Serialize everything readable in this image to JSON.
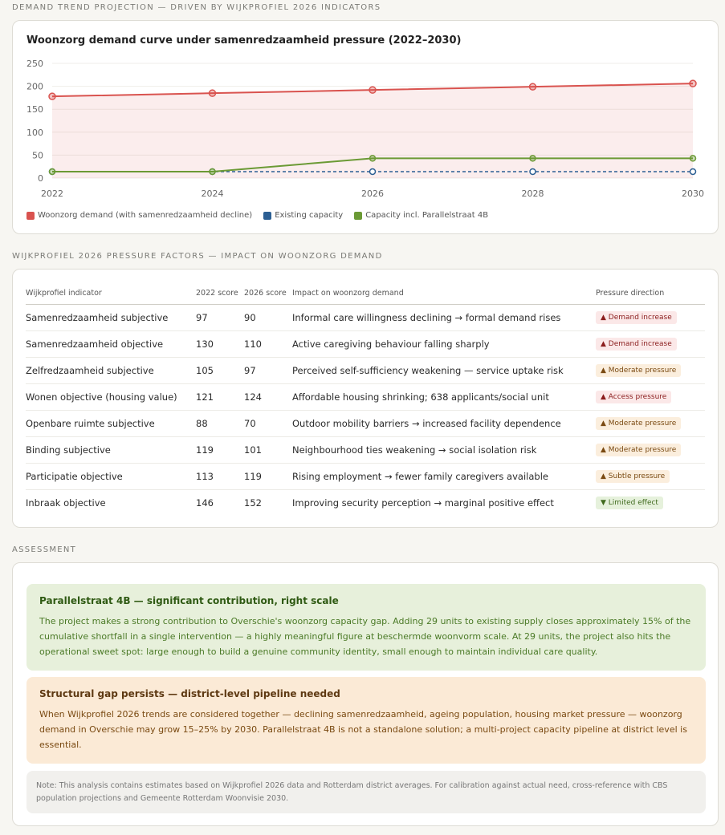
{
  "sections": {
    "chart_label": "DEMAND TREND PROJECTION — DRIVEN BY WIJKPROFIEL 2026 INDICATORS",
    "table_label": "WIJKPROFIEL 2026 PRESSURE FACTORS — IMPACT ON WOONZORG DEMAND",
    "assessment_label": "ASSESSMENT"
  },
  "chart_data": {
    "type": "line",
    "title": "Woonzorg demand curve under samenredzaamheid pressure (2022–2030)",
    "x": [
      "2022",
      "2024",
      "2026",
      "2028",
      "2030"
    ],
    "ylim": [
      0,
      250
    ],
    "yticks": [
      0,
      50,
      100,
      150,
      200,
      250
    ],
    "grid": true,
    "legend_position": "bottom-left",
    "series": [
      {
        "name": "Woonzorg demand (with samenredzaamheid decline)",
        "values": [
          178,
          185,
          192,
          199,
          206
        ],
        "color": "#d9534f",
        "style": "solid",
        "fill": true
      },
      {
        "name": "Existing capacity",
        "values": [
          14,
          14,
          14,
          14,
          14
        ],
        "color": "#2c5f93",
        "style": "dashed",
        "fill": false
      },
      {
        "name": "Capacity incl. Parallelstraat 4B",
        "values": [
          14,
          14,
          43,
          43,
          43
        ],
        "color": "#6b9a35",
        "style": "solid",
        "fill": false
      }
    ]
  },
  "table": {
    "headers": [
      "Wijkprofiel indicator",
      "2022 score",
      "2026 score",
      "Impact on woonzorg demand",
      "Pressure direction"
    ],
    "rows": [
      {
        "indicator": "Samenredzaamheid subjective",
        "s2022": "97",
        "s2026": "90",
        "impact": "Informal care willingness declining → formal demand rises",
        "badge": "▲ Demand increase",
        "tone": "red"
      },
      {
        "indicator": "Samenredzaamheid objective",
        "s2022": "130",
        "s2026": "110",
        "impact": "Active caregiving behaviour falling sharply",
        "badge": "▲ Demand increase",
        "tone": "red"
      },
      {
        "indicator": "Zelfredzaamheid subjective",
        "s2022": "105",
        "s2026": "97",
        "impact": "Perceived self-sufficiency weakening — service uptake risk",
        "badge": "▲ Moderate pressure",
        "tone": "orange"
      },
      {
        "indicator": "Wonen objective (housing value)",
        "s2022": "121",
        "s2026": "124",
        "impact": "Affordable housing shrinking; 638 applicants/social unit",
        "badge": "▲ Access pressure",
        "tone": "red"
      },
      {
        "indicator": "Openbare ruimte subjective",
        "s2022": "88",
        "s2026": "70",
        "impact": "Outdoor mobility barriers → increased facility dependence",
        "badge": "▲ Moderate pressure",
        "tone": "orange"
      },
      {
        "indicator": "Binding subjective",
        "s2022": "119",
        "s2026": "101",
        "impact": "Neighbourhood ties weakening → social isolation risk",
        "badge": "▲ Moderate pressure",
        "tone": "orange"
      },
      {
        "indicator": "Participatie objective",
        "s2022": "113",
        "s2026": "119",
        "impact": "Rising employment → fewer family caregivers available",
        "badge": "▲ Subtle pressure",
        "tone": "orange"
      },
      {
        "indicator": "Inbraak objective",
        "s2022": "146",
        "s2026": "152",
        "impact": "Improving security perception → marginal positive effect",
        "badge": "▼ Limited effect",
        "tone": "green"
      }
    ]
  },
  "assessment": {
    "green": {
      "title": "Parallelstraat 4B — significant contribution, right scale",
      "text": "The project makes a strong contribution to Overschie's woonzorg capacity gap. Adding 29 units to existing supply closes approximately 15% of the cumulative shortfall in a single intervention — a highly meaningful figure at beschermde woonvorm scale. At 29 units, the project also hits the operational sweet spot: large enough to build a genuine community identity, small enough to maintain individual care quality."
    },
    "orange": {
      "title": "Structural gap persists — district-level pipeline needed",
      "text": "When Wijkprofiel 2026 trends are considered together — declining samenredzaamheid, ageing population, housing market pressure — woonzorg demand in Overschie may grow 15–25% by 2030. Parallelstraat 4B is not a standalone solution; a multi-project capacity pipeline at district level is essential."
    },
    "note": "Note: This analysis contains estimates based on Wijkprofiel 2026 data and Rotterdam district averages. For calibration against actual need, cross-reference with CBS population projections and Gemeente Rotterdam Woonvisie 2030."
  }
}
